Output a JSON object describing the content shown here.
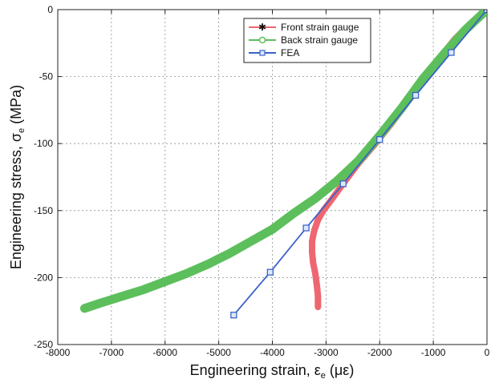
{
  "chart_data": {
    "type": "line",
    "title": "",
    "xlabel": {
      "main": "Engineering strain, ε",
      "sub": "e",
      "unit": " (με)"
    },
    "ylabel": {
      "main": "Engineering stress, σ",
      "sub": "e",
      "unit": " (MPa)"
    },
    "xlim": [
      -8000,
      0
    ],
    "ylim": [
      -250,
      0
    ],
    "xticks": [
      -8000,
      -7000,
      -6000,
      -5000,
      -4000,
      -3000,
      -2000,
      -1000,
      0
    ],
    "yticks": [
      0,
      -50,
      -100,
      -150,
      -200,
      -250
    ],
    "grid": true,
    "legend_position": "top-right",
    "series": [
      {
        "name": "Front strain gauge",
        "color": "#ee6670",
        "marker": "star",
        "points": [
          [
            0,
            0
          ],
          [
            -300,
            -10
          ],
          [
            -600,
            -22
          ],
          [
            -900,
            -37
          ],
          [
            -1200,
            -54
          ],
          [
            -1500,
            -70
          ],
          [
            -1800,
            -86
          ],
          [
            -2100,
            -101
          ],
          [
            -2400,
            -115
          ],
          [
            -2700,
            -131
          ],
          [
            -2900,
            -142
          ],
          [
            -3050,
            -150
          ],
          [
            -3150,
            -157
          ],
          [
            -3220,
            -165
          ],
          [
            -3260,
            -173
          ],
          [
            -3260,
            -181
          ],
          [
            -3240,
            -189
          ],
          [
            -3200,
            -197
          ],
          [
            -3170,
            -206
          ],
          [
            -3150,
            -214
          ],
          [
            -3150,
            -222
          ]
        ]
      },
      {
        "name": "Back strain gauge",
        "color": "#5cbf5c",
        "marker": "circle",
        "points": [
          [
            0,
            0
          ],
          [
            -400,
            -15
          ],
          [
            -800,
            -33
          ],
          [
            -1200,
            -52
          ],
          [
            -1600,
            -74
          ],
          [
            -2000,
            -94
          ],
          [
            -2400,
            -113
          ],
          [
            -2800,
            -128
          ],
          [
            -3200,
            -141
          ],
          [
            -3600,
            -152
          ],
          [
            -4000,
            -164
          ],
          [
            -4400,
            -173
          ],
          [
            -4800,
            -182
          ],
          [
            -5200,
            -190
          ],
          [
            -5600,
            -197
          ],
          [
            -6000,
            -203
          ],
          [
            -6400,
            -209
          ],
          [
            -6800,
            -214
          ],
          [
            -7200,
            -219
          ],
          [
            -7500,
            -223
          ]
        ]
      },
      {
        "name": "FEA",
        "color": "#3a62c8",
        "marker": "square",
        "points": [
          [
            0,
            0
          ],
          [
            -666,
            -32
          ],
          [
            -1330,
            -64
          ],
          [
            -2000,
            -97
          ],
          [
            -2680,
            -130
          ],
          [
            -3370,
            -163
          ],
          [
            -4040,
            -196
          ],
          [
            -4720,
            -228
          ]
        ]
      }
    ]
  }
}
